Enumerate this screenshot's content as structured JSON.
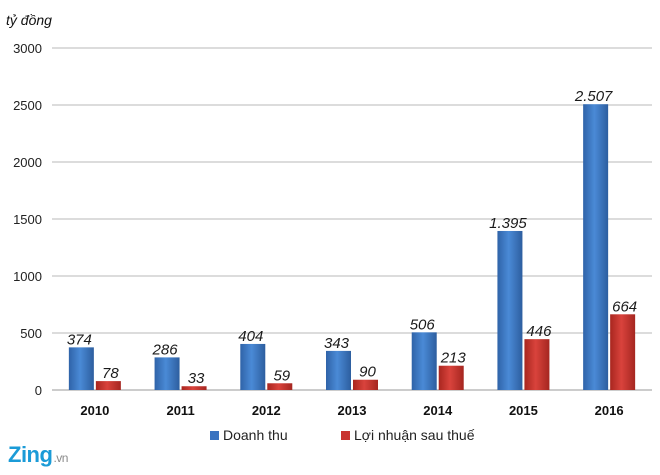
{
  "logo": {
    "brand": "Zing",
    "suffix": ".vn"
  },
  "chart_data": {
    "type": "bar",
    "title": "",
    "ylabel": "tỷ đồng",
    "xlabel": "",
    "categories": [
      "2010",
      "2011",
      "2012",
      "2013",
      "2014",
      "2015",
      "2016"
    ],
    "series": [
      {
        "name": "Doanh thu",
        "color": "#3a73c0",
        "values": [
          374,
          286,
          404,
          343,
          506,
          1395,
          2507
        ],
        "labels": [
          "374",
          "286",
          "404",
          "343",
          "506",
          "1.395",
          "2.507"
        ]
      },
      {
        "name": "Lợi nhuận sau thuế",
        "color": "#c8332f",
        "values": [
          78,
          33,
          59,
          90,
          213,
          446,
          664
        ],
        "labels": [
          "78",
          "33",
          "59",
          "90",
          "213",
          "446",
          "664"
        ]
      }
    ],
    "ylim": [
      0,
      3000
    ],
    "yticks": [
      0,
      500,
      1000,
      1500,
      2000,
      2500,
      3000
    ],
    "grid": true,
    "legend": "bottom"
  }
}
